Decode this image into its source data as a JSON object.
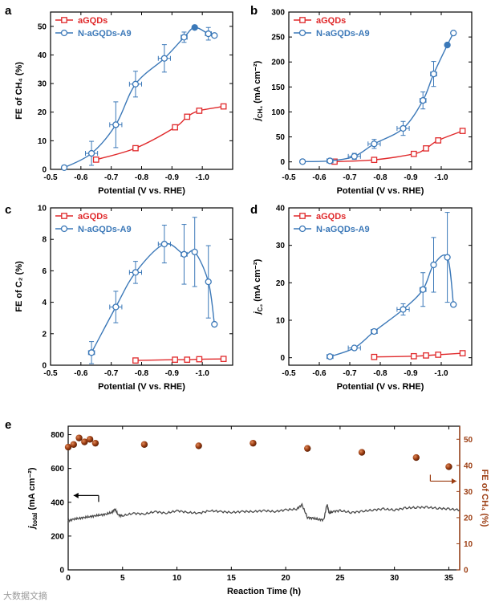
{
  "colors": {
    "agqds": "#e0292b",
    "nagqds": "#3b78b8",
    "fe_points": "#9c3d12",
    "jtotal": "#4a4a4a",
    "axis": "#000000"
  },
  "watermark": "大数据文摘",
  "chart_data": [
    {
      "panel_label": "a",
      "type": "line",
      "xlabel": "Potential (V vs. RHE)",
      "ylabel": "FE of CH₄ (%)",
      "xlim": [
        -0.5,
        -1.1
      ],
      "ylim": [
        0,
        55
      ],
      "xticks": [
        -0.5,
        -0.6,
        -0.7,
        -0.8,
        -0.9,
        -1.0,
        -1.1
      ],
      "xtick_labels": [
        "-0.5",
        "-0.6",
        "-0.7",
        "-0.8",
        "-0.9",
        "-1.0",
        ""
      ],
      "yticks": [
        0,
        10,
        20,
        30,
        40,
        50
      ],
      "ytick_labels": [
        "0",
        "10",
        "20",
        "30",
        "40",
        "50"
      ],
      "legend_position": "top-left",
      "series": [
        {
          "name": "aGQDs",
          "color": "#e0292b",
          "marker": "square",
          "x": [
            -0.65,
            -0.78,
            -0.91,
            -0.95,
            -0.99,
            -1.07
          ],
          "y": [
            3.4,
            7.4,
            14.7,
            18.4,
            20.5,
            22.0
          ],
          "xerr": [
            0,
            0,
            0,
            0,
            0,
            0
          ],
          "yerr": [
            0,
            0,
            0,
            0,
            0,
            0
          ],
          "fit": true
        },
        {
          "name": "N-aGQDs-A9",
          "color": "#3b78b8",
          "marker": "circle",
          "x": [
            -0.545,
            -0.635,
            -0.715,
            -0.78,
            -0.875,
            -0.94,
            -0.975,
            -1.02,
            -1.04
          ],
          "y": [
            0.6,
            5.6,
            15.6,
            29.8,
            38.8,
            46.2,
            49.6,
            47.4,
            46.8
          ],
          "xerr": [
            0,
            0.02,
            0.02,
            0.02,
            0.02,
            0.01,
            0,
            0.01,
            0
          ],
          "yerr": [
            0,
            4.2,
            8.0,
            4.5,
            4.8,
            1.8,
            0,
            2.2,
            0
          ],
          "fit": true
        }
      ]
    },
    {
      "panel_label": "b",
      "type": "line",
      "xlabel": "Potential (V vs. RHE)",
      "ylabel": "j (mA cm⁻²)",
      "ylabel_sub": "CH₄",
      "xlim": [
        -0.5,
        -1.1
      ],
      "ylim": [
        -15,
        300
      ],
      "xticks": [
        -0.5,
        -0.6,
        -0.7,
        -0.8,
        -0.9,
        -1.0,
        -1.1
      ],
      "xtick_labels": [
        "-0.5",
        "-0.6",
        "-0.7",
        "-0.8",
        "-0.9",
        "-1.0",
        ""
      ],
      "yticks": [
        0,
        50,
        100,
        150,
        200,
        250,
        300
      ],
      "ytick_labels": [
        "0",
        "50",
        "100",
        "150",
        "200",
        "250",
        "300"
      ],
      "legend_position": "top-left",
      "series": [
        {
          "name": "aGQDs",
          "color": "#e0292b",
          "marker": "square",
          "x": [
            -0.65,
            -0.78,
            -0.91,
            -0.95,
            -0.99,
            -1.07
          ],
          "y": [
            0.5,
            4,
            16,
            27,
            43,
            62
          ],
          "xerr": [
            0,
            0,
            0,
            0,
            0,
            0
          ],
          "yerr": [
            0,
            0,
            0,
            0,
            0,
            0
          ],
          "fit": true
        },
        {
          "name": "N-aGQDs-A9",
          "color": "#3b78b8",
          "marker": "circle",
          "x": [
            -0.545,
            -0.635,
            -0.715,
            -0.78,
            -0.875,
            -0.94,
            -0.975,
            -1.02,
            -1.04
          ],
          "y": [
            0.5,
            2,
            11,
            36,
            67,
            123,
            176,
            234,
            258
          ],
          "xerr": [
            0,
            0.01,
            0.02,
            0.02,
            0.02,
            0.01,
            0.01,
            0,
            0
          ],
          "yerr": [
            0,
            0,
            6,
            9,
            14,
            17,
            25,
            0,
            0
          ],
          "fit": true
        }
      ]
    },
    {
      "panel_label": "c",
      "type": "line",
      "xlabel": "Potential (V vs. RHE)",
      "ylabel": "FE of C₂ (%)",
      "xlim": [
        -0.5,
        -1.1
      ],
      "ylim": [
        0,
        10
      ],
      "xticks": [
        -0.5,
        -0.6,
        -0.7,
        -0.8,
        -0.9,
        -1.0,
        -1.1
      ],
      "xtick_labels": [
        "-0.5",
        "-0.6",
        "-0.7",
        "-0.8",
        "-0.9",
        "-1.0",
        ""
      ],
      "yticks": [
        0,
        2,
        4,
        6,
        8,
        10
      ],
      "ytick_labels": [
        "0",
        "2",
        "4",
        "6",
        "8",
        "10"
      ],
      "legend_position": "top-left",
      "series": [
        {
          "name": "aGQDs",
          "color": "#e0292b",
          "marker": "square",
          "x": [
            -0.78,
            -0.91,
            -0.95,
            -0.99,
            -1.07
          ],
          "y": [
            0.3,
            0.35,
            0.35,
            0.38,
            0.4
          ],
          "xerr": [
            0,
            0,
            0,
            0,
            0
          ],
          "yerr": [
            0,
            0,
            0,
            0,
            0
          ],
          "fit": true
        },
        {
          "name": "N-aGQDs-A9",
          "color": "#3b78b8",
          "marker": "circle",
          "x": [
            -0.635,
            -0.715,
            -0.78,
            -0.875,
            -0.94,
            -0.975,
            -1.02,
            -1.04
          ],
          "y": [
            0.8,
            3.7,
            5.9,
            7.7,
            7.05,
            7.2,
            5.3,
            2.6
          ],
          "xerr": [
            0.01,
            0.02,
            0.02,
            0.02,
            0.01,
            0,
            0,
            0
          ],
          "yerr": [
            0.7,
            1.0,
            0.7,
            1.2,
            1.9,
            2.2,
            2.3,
            0
          ],
          "fit": true
        }
      ]
    },
    {
      "panel_label": "d",
      "type": "line",
      "xlabel": "Potential (V vs. RHE)",
      "ylabel": "j (mA cm⁻²)",
      "ylabel_sub": "C₂",
      "xlim": [
        -0.5,
        -1.1
      ],
      "ylim": [
        -2,
        40
      ],
      "xticks": [
        -0.5,
        -0.6,
        -0.7,
        -0.8,
        -0.9,
        -1.0,
        -1.1
      ],
      "xtick_labels": [
        "-0.5",
        "-0.6",
        "-0.7",
        "-0.8",
        "-0.9",
        "-1.0",
        ""
      ],
      "yticks": [
        0,
        10,
        20,
        30,
        40
      ],
      "ytick_labels": [
        "0",
        "10",
        "20",
        "30",
        "40"
      ],
      "legend_position": "top-left",
      "series": [
        {
          "name": "aGQDs",
          "color": "#e0292b",
          "marker": "square",
          "x": [
            -0.78,
            -0.91,
            -0.95,
            -0.99,
            -1.07
          ],
          "y": [
            0.2,
            0.4,
            0.6,
            0.8,
            1.2
          ],
          "xerr": [
            0,
            0,
            0,
            0,
            0
          ],
          "yerr": [
            0,
            0,
            0,
            0,
            0
          ],
          "fit": true
        },
        {
          "name": "N-aGQDs-A9",
          "color": "#3b78b8",
          "marker": "circle",
          "x": [
            -0.635,
            -0.715,
            -0.78,
            -0.875,
            -0.94,
            -0.975,
            -1.02,
            -1.04
          ],
          "y": [
            0.3,
            2.6,
            7.0,
            12.9,
            18.2,
            24.8,
            26.8,
            14.2
          ],
          "xerr": [
            0.01,
            0.02,
            0.01,
            0.02,
            0.01,
            0,
            0,
            0
          ],
          "yerr": [
            0.2,
            0.3,
            0.5,
            1.5,
            4.5,
            7.3,
            12.0,
            0
          ],
          "fit": true
        }
      ]
    },
    {
      "panel_label": "e",
      "type": "line",
      "xlabel": "Reaction Time (h)",
      "ylabel": "j (mA cm⁻²)",
      "ylabel_sub": "total",
      "ylabel_right": "FE of CH₄ (%)",
      "xlim": [
        0,
        36
      ],
      "ylim": [
        0,
        850
      ],
      "ylim_right": [
        0,
        55
      ],
      "xticks": [
        0,
        5,
        10,
        15,
        20,
        25,
        30,
        35
      ],
      "xtick_labels": [
        "0",
        "5",
        "10",
        "15",
        "20",
        "25",
        "30",
        "35"
      ],
      "yticks": [
        0,
        200,
        400,
        600,
        800
      ],
      "ytick_labels": [
        "0",
        "200",
        "400",
        "600",
        "800"
      ],
      "yticks_right": [
        0,
        10,
        20,
        30,
        40,
        50
      ],
      "ytick_labels_right": [
        "0",
        "10",
        "20",
        "30",
        "40",
        "50"
      ],
      "series": [
        {
          "name": "",
          "axis": "left",
          "color": "#4a4a4a",
          "style": "trace",
          "x": [
            0,
            0.5,
            1,
            1.5,
            2,
            2.5,
            3,
            3.5,
            4,
            4.3,
            4.6,
            5,
            6,
            7,
            8,
            9,
            10,
            11,
            12,
            13,
            14,
            15,
            16,
            17,
            18,
            19,
            20,
            21,
            21.5,
            22,
            22.5,
            23,
            23.5,
            23.8,
            24,
            24.3,
            25,
            26,
            27,
            28,
            29,
            30,
            31,
            32,
            33,
            34,
            35,
            36
          ],
          "y": [
            290,
            300,
            305,
            310,
            315,
            320,
            325,
            330,
            340,
            360,
            325,
            320,
            335,
            330,
            345,
            335,
            350,
            340,
            335,
            350,
            345,
            340,
            345,
            345,
            350,
            345,
            355,
            360,
            385,
            310,
            305,
            300,
            295,
            390,
            335,
            345,
            350,
            340,
            345,
            355,
            360,
            355,
            365,
            370,
            370,
            365,
            360,
            355
          ]
        },
        {
          "name": "",
          "axis": "right",
          "color": "#9c3d12",
          "style": "points",
          "x": [
            0,
            0.5,
            1,
            1.5,
            2,
            2.5,
            7,
            12,
            17,
            22,
            27,
            32,
            35
          ],
          "y": [
            47,
            48,
            50.5,
            49,
            50,
            48.5,
            48,
            47.5,
            48.5,
            46.5,
            45,
            43,
            39.5
          ]
        }
      ]
    }
  ]
}
